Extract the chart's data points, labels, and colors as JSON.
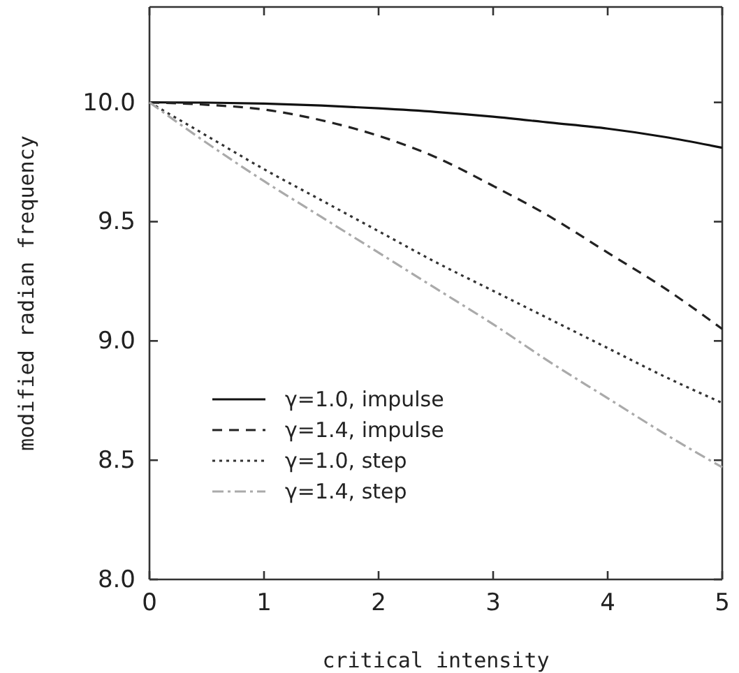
{
  "chart_data": {
    "type": "line",
    "xlabel": "critical intensity",
    "ylabel": "modified radian frequency",
    "x": [
      0,
      0.5,
      1,
      1.5,
      2,
      2.5,
      3,
      3.5,
      4,
      4.5,
      5
    ],
    "xlim": [
      0,
      5
    ],
    "xticks": [
      0,
      1,
      2,
      3,
      4,
      5
    ],
    "ylim": [
      8,
      10.4
    ],
    "yticks": [
      {
        "value": 8,
        "label": "8.0"
      },
      {
        "value": 8.5,
        "label": "8.5"
      },
      {
        "value": 9,
        "label": "9.0"
      },
      {
        "value": 9.5,
        "label": "9.5"
      },
      {
        "value": 10,
        "label": "10.0"
      }
    ],
    "grid": false,
    "legend": "bottom left",
    "marker": "none",
    "series": [
      {
        "name": "γ=1.0, impulse",
        "color": "#111111",
        "line_style": "solid",
        "values": [
          10,
          9.999,
          9.995,
          9.987,
          9.975,
          9.96,
          9.94,
          9.915,
          9.89,
          9.855,
          9.81
        ]
      },
      {
        "name": "γ=1.4, impulse",
        "color": "#222222",
        "line_style": "dashed",
        "values": [
          10,
          9.99,
          9.97,
          9.925,
          9.86,
          9.77,
          9.65,
          9.52,
          9.37,
          9.22,
          9.05
        ]
      },
      {
        "name": "γ=1.0, step",
        "color": "#333333",
        "line_style": "dotted",
        "values": [
          10,
          9.86,
          9.72,
          9.59,
          9.46,
          9.33,
          9.21,
          9.09,
          8.97,
          8.85,
          8.74
        ]
      },
      {
        "name": "γ=1.4, step",
        "color": "#aaaaaa",
        "line_style": "dashdot",
        "values": [
          10,
          9.83,
          9.67,
          9.52,
          9.37,
          9.22,
          9.07,
          8.91,
          8.76,
          8.61,
          8.47
        ]
      }
    ]
  }
}
